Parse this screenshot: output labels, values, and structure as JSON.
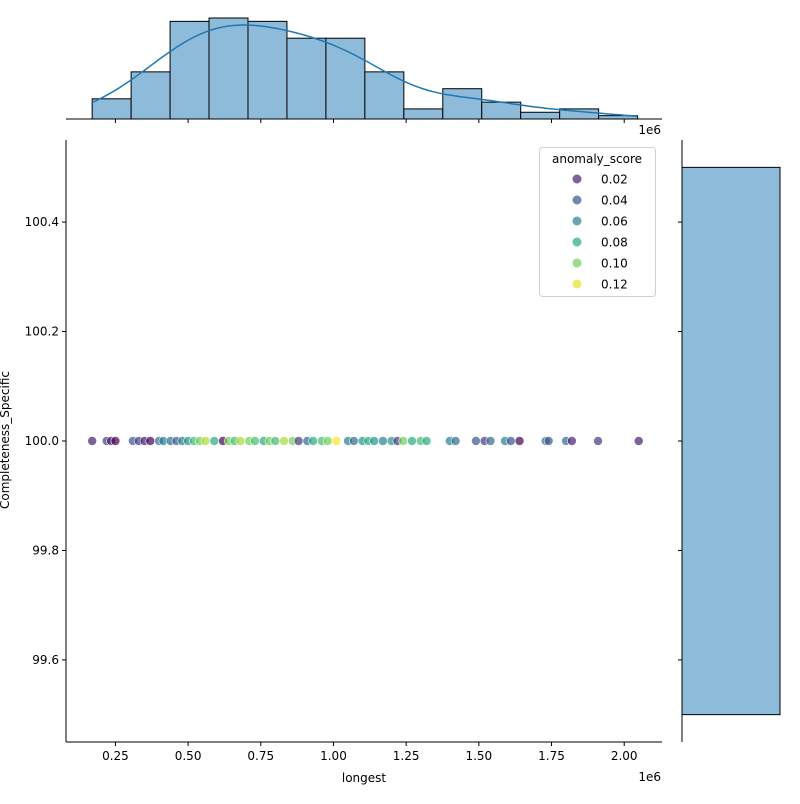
{
  "chart_data": {
    "type": "scatter",
    "kind": "jointplot",
    "xlabel": "longest",
    "ylabel": "Completeness_Specific",
    "x_offset_label": "1e6",
    "xlim": [
      80000,
      2130000
    ],
    "ylim": [
      99.45,
      100.55
    ],
    "x_ticks": [
      0.25,
      0.5,
      0.75,
      1.0,
      1.25,
      1.5,
      1.75,
      2.0
    ],
    "x_tick_labels": [
      "0.25",
      "0.50",
      "0.75",
      "1.00",
      "1.25",
      "1.50",
      "1.75",
      "2.00"
    ],
    "y_ticks": [
      99.6,
      99.8,
      100.0,
      100.2,
      100.4
    ],
    "y_tick_labels": [
      "99.6",
      "99.8",
      "100.0",
      "100.2",
      "100.4"
    ],
    "grid": false,
    "legend": {
      "title": "anomaly_score",
      "placement": "top-right",
      "entries": [
        {
          "label": "0.02",
          "value": 0.02
        },
        {
          "label": "0.04",
          "value": 0.04
        },
        {
          "label": "0.06",
          "value": 0.06
        },
        {
          "label": "0.08",
          "value": 0.08
        },
        {
          "label": "0.10",
          "value": 0.1
        },
        {
          "label": "0.12",
          "value": 0.12
        }
      ]
    },
    "colormap": "viridis",
    "hue_range": [
      0.01,
      0.125
    ],
    "points": [
      [
        170000,
        0.02
      ],
      [
        220000,
        0.03
      ],
      [
        235000,
        0.02
      ],
      [
        250000,
        0.01
      ],
      [
        310000,
        0.04
      ],
      [
        330000,
        0.03
      ],
      [
        350000,
        0.02
      ],
      [
        370000,
        0.01
      ],
      [
        400000,
        0.05
      ],
      [
        415000,
        0.06
      ],
      [
        440000,
        0.05
      ],
      [
        460000,
        0.04
      ],
      [
        480000,
        0.06
      ],
      [
        500000,
        0.07
      ],
      [
        520000,
        0.09
      ],
      [
        540000,
        0.1
      ],
      [
        560000,
        0.11
      ],
      [
        590000,
        0.08
      ],
      [
        620000,
        0.01
      ],
      [
        640000,
        0.1
      ],
      [
        660000,
        0.09
      ],
      [
        680000,
        0.11
      ],
      [
        710000,
        0.1
      ],
      [
        730000,
        0.09
      ],
      [
        760000,
        0.08
      ],
      [
        780000,
        0.1
      ],
      [
        800000,
        0.09
      ],
      [
        830000,
        0.11
      ],
      [
        860000,
        0.1
      ],
      [
        880000,
        0.03
      ],
      [
        910000,
        0.05
      ],
      [
        930000,
        0.08
      ],
      [
        960000,
        0.09
      ],
      [
        980000,
        0.1
      ],
      [
        1010000,
        0.125
      ],
      [
        1050000,
        0.06
      ],
      [
        1070000,
        0.05
      ],
      [
        1100000,
        0.07
      ],
      [
        1120000,
        0.08
      ],
      [
        1140000,
        0.07
      ],
      [
        1170000,
        0.06
      ],
      [
        1200000,
        0.07
      ],
      [
        1220000,
        0.03
      ],
      [
        1240000,
        0.1
      ],
      [
        1270000,
        0.08
      ],
      [
        1300000,
        0.09
      ],
      [
        1320000,
        0.08
      ],
      [
        1400000,
        0.06
      ],
      [
        1420000,
        0.05
      ],
      [
        1490000,
        0.04
      ],
      [
        1520000,
        0.03
      ],
      [
        1540000,
        0.05
      ],
      [
        1590000,
        0.06
      ],
      [
        1610000,
        0.04
      ],
      [
        1640000,
        0.01
      ],
      [
        1730000,
        0.05
      ],
      [
        1740000,
        0.04
      ],
      [
        1800000,
        0.05
      ],
      [
        1820000,
        0.02
      ],
      [
        1910000,
        0.03
      ],
      [
        2050000,
        0.02
      ]
    ],
    "y_value": 100.0,
    "top_histogram": {
      "bin_edges": [
        170000,
        304000,
        438000,
        572000,
        706000,
        840000,
        974000,
        1108000,
        1242000,
        1376000,
        1510000,
        1644000,
        1778000,
        1912000,
        2046000
      ],
      "counts": [
        6,
        14,
        29,
        30,
        29,
        24,
        24,
        14,
        3,
        9,
        5,
        2,
        3,
        1
      ],
      "kde": true
    },
    "right_histogram": {
      "bin_edges": [
        99.5,
        100.5
      ],
      "counts": [
        193
      ]
    },
    "colors": {
      "hist_fill": "#8fbbda",
      "kde_line": "#1f77b4"
    }
  }
}
